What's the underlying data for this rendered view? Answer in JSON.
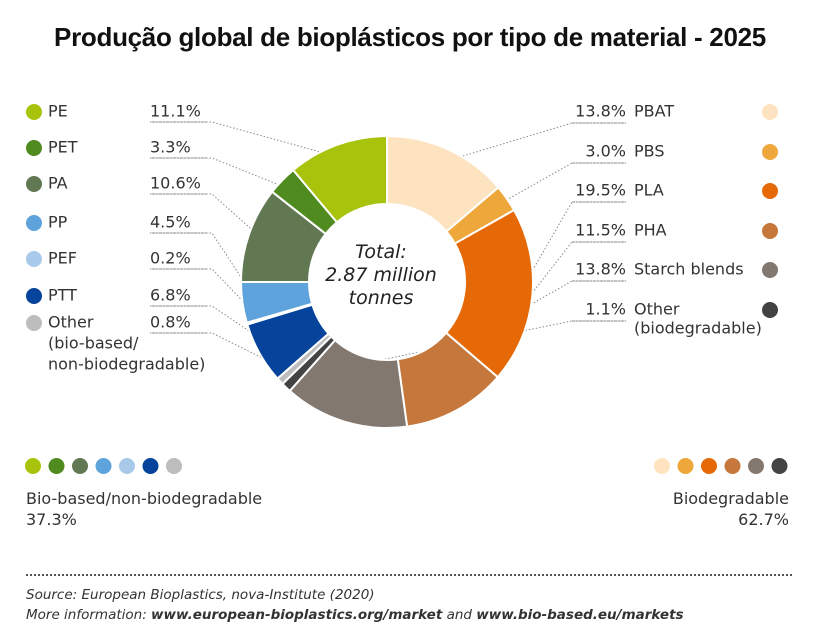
{
  "title": "Produção global de bioplásticos por tipo de material - 2025",
  "center_label": [
    "Total:",
    "2.87 million",
    "tonnes"
  ],
  "chart_data": {
    "type": "pie",
    "donut": true,
    "unit": "%",
    "left_slices": [
      {
        "label": [
          "PE"
        ],
        "value": 11.1,
        "value_text": "11.1%",
        "color": "#a7c30c"
      },
      {
        "label": [
          "PET"
        ],
        "value": 3.3,
        "value_text": "3.3%",
        "color": "#4f8b1e"
      },
      {
        "label": [
          "PA"
        ],
        "value": 10.6,
        "value_text": "10.6%",
        "color": "#617852"
      },
      {
        "label": [
          "PP"
        ],
        "value": 4.5,
        "value_text": "4.5%",
        "color": "#5fa3dc"
      },
      {
        "label": [
          "PEF"
        ],
        "value": 0.2,
        "value_text": "0.2%",
        "color": "#a9c9ea"
      },
      {
        "label": [
          "PTT"
        ],
        "value": 6.8,
        "value_text": "6.8%",
        "color": "#06449c"
      },
      {
        "label": [
          "Other",
          "(bio-based/",
          "non-biodegradable)"
        ],
        "value": 0.8,
        "value_text": "0.8%",
        "color": "#bdbdbd"
      }
    ],
    "right_slices": [
      {
        "label": [
          "PBAT"
        ],
        "value": 13.8,
        "value_text": "13.8%",
        "color": "#fde3c0"
      },
      {
        "label": [
          "PBS"
        ],
        "value": 3.0,
        "value_text": "3.0%",
        "color": "#eda73b"
      },
      {
        "label": [
          "PLA"
        ],
        "value": 19.5,
        "value_text": "19.5%",
        "color": "#e56a07"
      },
      {
        "label": [
          "PHA"
        ],
        "value": 11.5,
        "value_text": "11.5%",
        "color": "#c5773c"
      },
      {
        "label": [
          "Starch blends"
        ],
        "value": 13.8,
        "value_text": "13.8%",
        "color": "#837870"
      },
      {
        "label": [
          "Other",
          "(biodegradable)"
        ],
        "value": 1.1,
        "value_text": "1.1%",
        "color": "#434343"
      }
    ],
    "groups": {
      "left": {
        "name": "Bio-based/non-biodegradable",
        "value_text": "37.3%"
      },
      "right": {
        "name": "Biodegradable",
        "value_text": "62.7%"
      }
    }
  },
  "footer": {
    "source": "Source: European Bioplastics, nova-Institute (2020)",
    "more_prefix": "More information: ",
    "link1": "www.european-bioplastics.org/market",
    "and_text": " and ",
    "link2": "www.bio-based.eu/markets"
  }
}
